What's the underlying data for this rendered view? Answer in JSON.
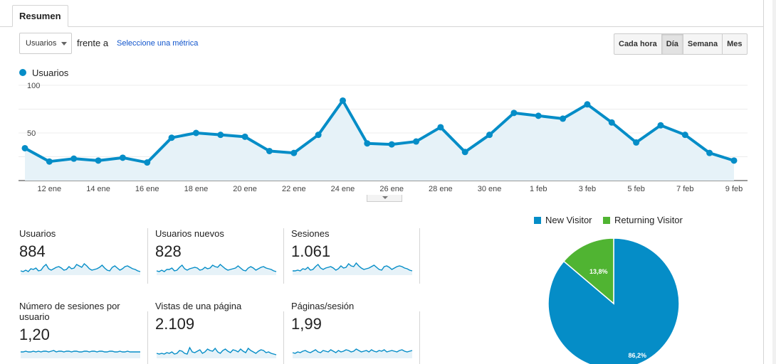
{
  "tabs": [
    "Resumen"
  ],
  "controls": {
    "metric_select": "Usuarios",
    "versus_label": "frente a",
    "select_metric_link": "Seleccione una métrica",
    "granularity": [
      "Cada hora",
      "Día",
      "Semana",
      "Mes"
    ],
    "active_granularity": "Día"
  },
  "chart_data": [
    {
      "type": "area",
      "series": [
        {
          "name": "Usuarios",
          "color": "#058dc7",
          "values": [
            34,
            20,
            23,
            21,
            24,
            19,
            45,
            50,
            48,
            46,
            31,
            29,
            48,
            84,
            39,
            38,
            41,
            56,
            30,
            48,
            71,
            68,
            65,
            80,
            61,
            40,
            58,
            48,
            29,
            21
          ]
        }
      ],
      "x_tick_labels": [
        "12 ene",
        "14 ene",
        "16 ene",
        "18 ene",
        "20 ene",
        "22 ene",
        "24 ene",
        "26 ene",
        "28 ene",
        "30 ene",
        "1 feb",
        "3 feb",
        "5 feb",
        "7 feb",
        "9 feb"
      ],
      "y_tick_labels": [
        "50",
        "100"
      ],
      "ylim": [
        0,
        100
      ],
      "grid": true
    },
    {
      "type": "pie",
      "slices": [
        {
          "name": "New Visitor",
          "value": 86.2,
          "label": "86,2%",
          "color": "#058dc7"
        },
        {
          "name": "Returning Visitor",
          "value": 13.8,
          "label": "13,8%",
          "color": "#50b432"
        }
      ],
      "legend_position": "top"
    }
  ],
  "scorecards": [
    {
      "label": "Usuarios",
      "value": "884",
      "spark": [
        5,
        4,
        6,
        4,
        8,
        7,
        9,
        5,
        6,
        11,
        14,
        8,
        6,
        8,
        10,
        11,
        9,
        6,
        7,
        11,
        8,
        9,
        14,
        12,
        10,
        15,
        12,
        8,
        6,
        7,
        8,
        10,
        13,
        9,
        6,
        5,
        10,
        12,
        9,
        6,
        8,
        11,
        12,
        10,
        8,
        7,
        5,
        4
      ]
    },
    {
      "label": "Usuarios nuevos",
      "value": "828",
      "spark": [
        5,
        4,
        6,
        4,
        7,
        7,
        9,
        5,
        6,
        10,
        13,
        8,
        6,
        8,
        9,
        10,
        9,
        6,
        7,
        10,
        8,
        9,
        13,
        11,
        10,
        14,
        11,
        8,
        6,
        7,
        8,
        9,
        12,
        9,
        6,
        5,
        9,
        11,
        9,
        6,
        8,
        10,
        11,
        9,
        8,
        7,
        5,
        4
      ]
    },
    {
      "label": "Sesiones",
      "value": "1.061",
      "spark": [
        5,
        5,
        6,
        5,
        8,
        7,
        10,
        6,
        7,
        11,
        14,
        9,
        7,
        9,
        10,
        11,
        9,
        6,
        8,
        12,
        9,
        10,
        15,
        12,
        11,
        16,
        12,
        9,
        7,
        8,
        9,
        11,
        13,
        10,
        7,
        6,
        11,
        12,
        10,
        7,
        9,
        11,
        12,
        11,
        9,
        8,
        6,
        5
      ]
    },
    {
      "label": "Número de sesiones por usuario",
      "value": "1,20",
      "spark": [
        8,
        8,
        9,
        8,
        8,
        9,
        8,
        9,
        8,
        9,
        9,
        8,
        9,
        10,
        8,
        9,
        9,
        8,
        9,
        9,
        8,
        9,
        9,
        8,
        8,
        9,
        9,
        8,
        9,
        9,
        8,
        9,
        9,
        8,
        8,
        9,
        9,
        8,
        8,
        9,
        8,
        8,
        9,
        8,
        8,
        8,
        8,
        8
      ]
    },
    {
      "label": "Vistas de una página",
      "value": "2.109",
      "spark": [
        6,
        5,
        6,
        5,
        7,
        6,
        8,
        5,
        6,
        10,
        9,
        6,
        5,
        14,
        8,
        7,
        9,
        11,
        6,
        8,
        12,
        10,
        9,
        13,
        8,
        6,
        10,
        12,
        9,
        7,
        11,
        10,
        8,
        12,
        9,
        7,
        13,
        10,
        8,
        6,
        9,
        11,
        10,
        7,
        8,
        6,
        5,
        4
      ]
    },
    {
      "label": "Páginas/sesión",
      "value": "1,99",
      "spark": [
        7,
        6,
        8,
        7,
        9,
        10,
        8,
        7,
        9,
        11,
        8,
        7,
        10,
        9,
        8,
        11,
        9,
        7,
        10,
        8,
        9,
        11,
        10,
        8,
        9,
        12,
        10,
        8,
        9,
        10,
        8,
        11,
        9,
        8,
        10,
        9,
        11,
        8,
        9,
        10,
        9,
        8,
        10,
        11,
        9,
        8,
        9,
        10
      ]
    }
  ]
}
